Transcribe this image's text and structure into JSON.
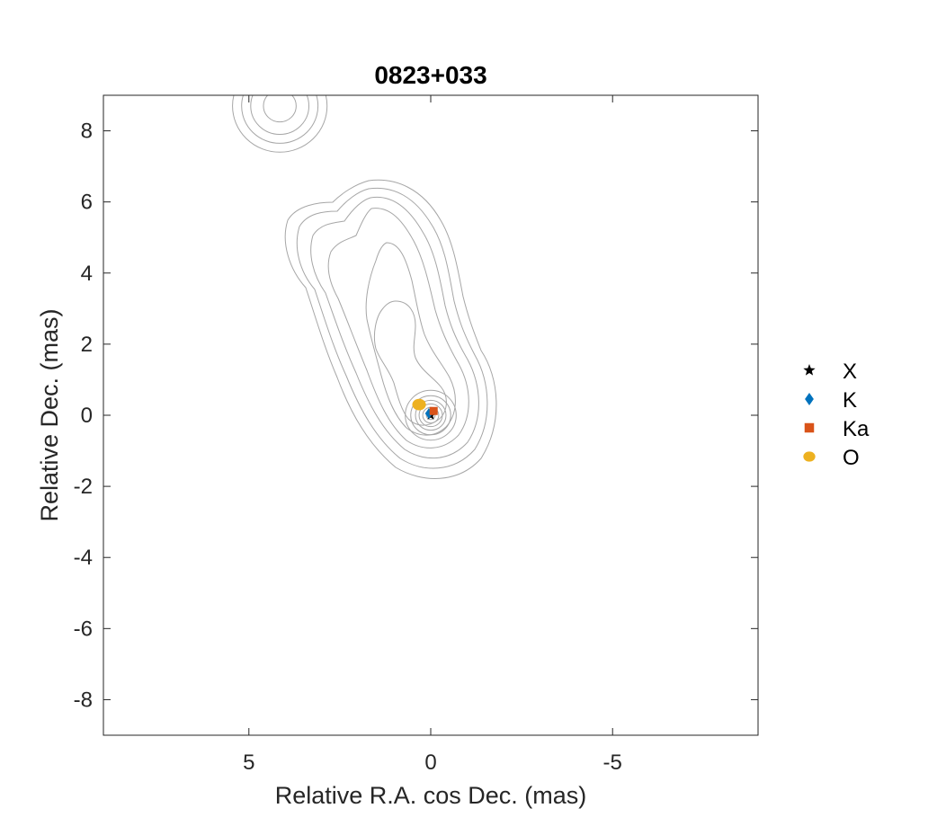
{
  "chart_data": {
    "type": "scatter",
    "title": "0823+033",
    "xlabel": "Relative R.A. cos Dec. (mas)",
    "ylabel": "Relative Dec. (mas)",
    "xlim": [
      9,
      -9
    ],
    "ylim": [
      -9,
      9
    ],
    "x_reversed": true,
    "xticks": [
      5,
      0,
      -5
    ],
    "xtick_labels": [
      "5",
      "0",
      "-5"
    ],
    "yticks": [
      8,
      6,
      4,
      2,
      0,
      -2,
      -4,
      -6,
      -8
    ],
    "ytick_labels": [
      "8",
      "6",
      "4",
      "2",
      "0",
      "-2",
      "-4",
      "-6",
      "-8"
    ],
    "grid": false,
    "legend_position": "right",
    "contour_color": "#a6a6a6",
    "series": [
      {
        "name": "X",
        "marker": "star",
        "color": "#000000",
        "points": [
          [
            0.0,
            0.0
          ]
        ]
      },
      {
        "name": "K",
        "marker": "diamond",
        "color": "#0072BD",
        "points": [
          [
            0.05,
            0.05
          ]
        ]
      },
      {
        "name": "Ka",
        "marker": "square",
        "color": "#D95319",
        "points": [
          [
            -0.08,
            0.12
          ]
        ]
      },
      {
        "name": "O",
        "marker": "circle",
        "color": "#EDB120",
        "points": [
          [
            0.32,
            0.3
          ]
        ]
      }
    ],
    "contours": [
      {
        "cx": 4.15,
        "cy": 8.7,
        "levels": [
          0.45,
          0.8,
          1.05,
          1.3
        ]
      },
      {
        "cx": 0.0,
        "cy": 0.0,
        "levels": [
          0.12,
          0.22,
          0.32,
          0.42,
          0.55,
          0.7
        ]
      }
    ]
  }
}
